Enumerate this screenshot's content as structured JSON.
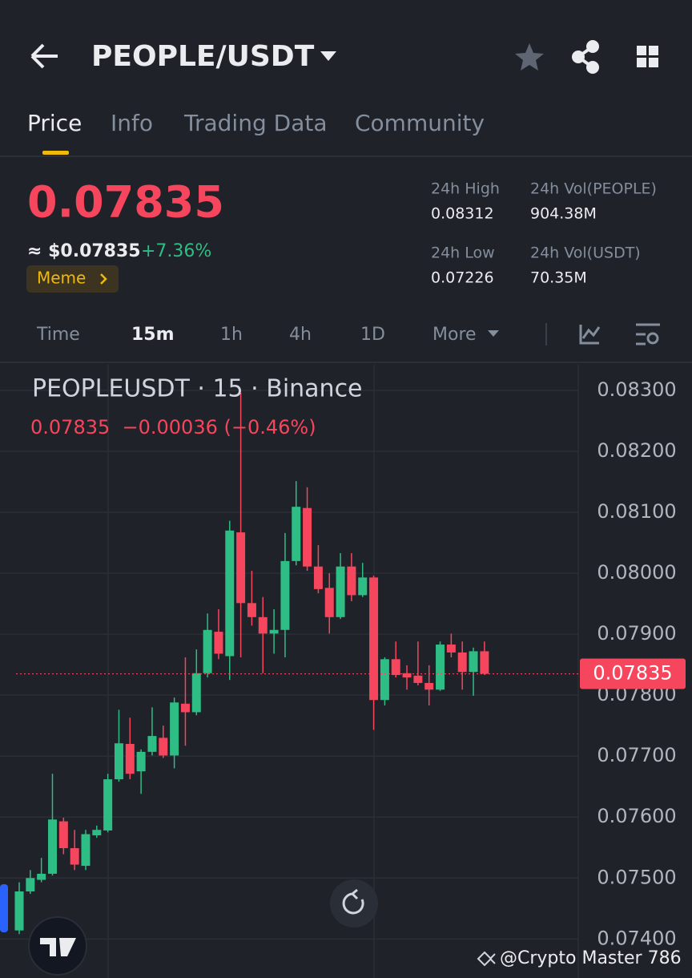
{
  "header": {
    "title": "PEOPLE/USDT"
  },
  "tabs": [
    "Price",
    "Info",
    "Trading Data",
    "Community"
  ],
  "price": {
    "last": "0.07835",
    "usd": "≈ $0.07835",
    "change": "+7.36%",
    "tag": "Meme"
  },
  "stats": [
    {
      "label": "24h High",
      "value": "0.08312"
    },
    {
      "label": "24h Vol(PEOPLE)",
      "value": "904.38M"
    },
    {
      "label": "24h Low",
      "value": "0.07226"
    },
    {
      "label": "24h Vol(USDT)",
      "value": "70.35M"
    }
  ],
  "intervals": [
    "Time",
    "15m",
    "1h",
    "4h",
    "1D",
    "More"
  ],
  "chart_data": {
    "type": "candlestick",
    "title": "PEOPLEUSDT · 15 · Binance",
    "subtitle": "0.07835  −0.00036 (−0.46%)",
    "open": [
      0.07414,
      0.07478,
      0.07497,
      0.07507,
      0.07593,
      0.07549,
      0.0752,
      0.0757,
      0.07578,
      0.07662,
      0.0772,
      0.07675,
      0.07707,
      0.0773,
      0.07701,
      0.07786,
      0.07772,
      0.07836,
      0.07904,
      0.07864,
      0.08067,
      0.07951,
      0.07928,
      0.07901,
      0.07907,
      0.0802,
      0.08107,
      0.08011,
      0.07976,
      0.07928,
      0.08011,
      0.07964,
      0.07993,
      0.07792,
      0.07859,
      0.07836,
      0.07832,
      0.0782,
      0.07809,
      0.07883,
      0.0787,
      0.07838,
      0.07872
    ],
    "high": [
      0.07493,
      0.07513,
      0.07533,
      0.07671,
      0.07599,
      0.07579,
      0.07579,
      0.07586,
      0.07671,
      0.07776,
      0.07763,
      0.07711,
      0.0778,
      0.0775,
      0.07796,
      0.07862,
      0.07875,
      0.07934,
      0.07941,
      0.08086,
      0.08296,
      0.08004,
      0.07961,
      0.07941,
      0.08066,
      0.08151,
      0.08141,
      0.08046,
      0.08,
      0.08033,
      0.08033,
      0.08017,
      0.07996,
      0.07862,
      0.07888,
      0.07849,
      0.07888,
      0.07849,
      0.07888,
      0.07901,
      0.07888,
      0.07878,
      0.07888
    ],
    "low": [
      0.07408,
      0.07474,
      0.07493,
      0.07504,
      0.07539,
      0.07513,
      0.07513,
      0.07566,
      0.07575,
      0.07658,
      0.07662,
      0.07638,
      0.07701,
      0.07697,
      0.0768,
      0.07717,
      0.07767,
      0.07829,
      0.07859,
      0.07825,
      0.07862,
      0.07914,
      0.07836,
      0.07868,
      0.07862,
      0.08013,
      0.08004,
      0.07967,
      0.07901,
      0.07925,
      0.07954,
      0.07961,
      0.07743,
      0.07783,
      0.07829,
      0.07809,
      0.07816,
      0.07783,
      0.07807,
      0.07862,
      0.07809,
      0.07799,
      0.07833
    ],
    "close": [
      0.07478,
      0.075,
      0.07507,
      0.07596,
      0.07549,
      0.07522,
      0.07572,
      0.07579,
      0.07662,
      0.07721,
      0.07671,
      0.07707,
      0.07733,
      0.07701,
      0.07788,
      0.07772,
      0.07836,
      0.07907,
      0.07868,
      0.0807,
      0.07951,
      0.07928,
      0.07901,
      0.07907,
      0.0802,
      0.08109,
      0.08011,
      0.07974,
      0.07928,
      0.08011,
      0.07964,
      0.07993,
      0.07792,
      0.07859,
      0.07833,
      0.07829,
      0.0782,
      0.07809,
      0.07883,
      0.0787,
      0.07838,
      0.07872,
      0.07835
    ],
    "up_color": "#2ebd85",
    "down_color": "#f6465d",
    "ylim": [
      0.07336,
      0.08342
    ],
    "yticks": [
      {
        "value": 0.083,
        "label": "0.08300"
      },
      {
        "value": 0.082,
        "label": "0.08200"
      },
      {
        "value": 0.081,
        "label": "0.08100"
      },
      {
        "value": 0.08,
        "label": "0.08000"
      },
      {
        "value": 0.079,
        "label": "0.07900"
      },
      {
        "value": 0.078,
        "label": "0.07800"
      },
      {
        "value": 0.077,
        "label": "0.07700"
      },
      {
        "value": 0.076,
        "label": "0.07600"
      },
      {
        "value": 0.075,
        "label": "0.07500"
      },
      {
        "value": 0.074,
        "label": "0.07400"
      }
    ],
    "grid": true,
    "last_price": 0.07835
  },
  "watermark": "@Crypto Master 786"
}
